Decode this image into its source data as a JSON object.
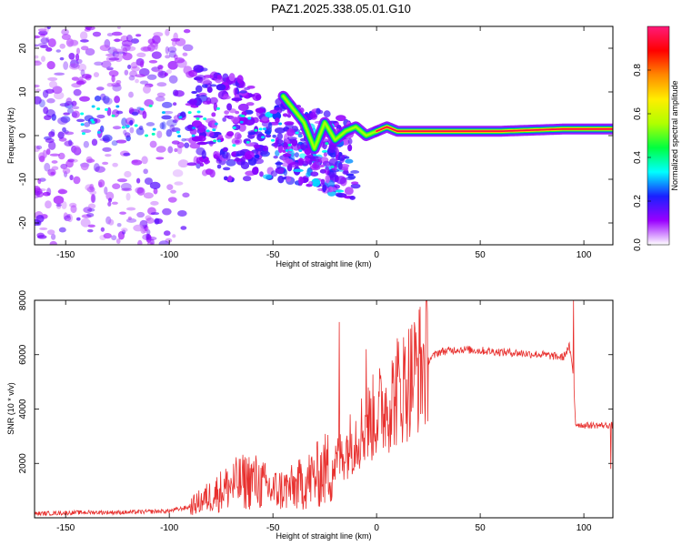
{
  "title": "PAZ1.2025.338.05.01.G10",
  "colors": {
    "snr_line": "#e8302e",
    "frame": "#000000",
    "colormap": [
      "#ffffff",
      "#9a00ff",
      "#1a20ff",
      "#00ffff",
      "#00ff40",
      "#b0ff00",
      "#ffee00",
      "#ff8800",
      "#ff0000",
      "#ff1a7a"
    ]
  },
  "chart_data": [
    {
      "type": "heatmap",
      "name": "spectrogram",
      "xlabel": "Height of straight line (km)",
      "ylabel": "Frequency (Hz)",
      "xlim": [
        -165,
        114
      ],
      "ylim": [
        -25,
        25
      ],
      "xticks": [
        -150,
        -100,
        -50,
        0,
        50,
        100
      ],
      "yticks": [
        -20,
        -10,
        0,
        10,
        20
      ],
      "ridge": [
        {
          "x": -45,
          "y": 9
        },
        {
          "x": -40,
          "y": 6
        },
        {
          "x": -35,
          "y": 3
        },
        {
          "x": -30,
          "y": -3
        },
        {
          "x": -25,
          "y": 3
        },
        {
          "x": -20,
          "y": -1
        },
        {
          "x": -15,
          "y": 1
        },
        {
          "x": -10,
          "y": 2
        },
        {
          "x": -5,
          "y": 0
        },
        {
          "x": 0,
          "y": 1
        },
        {
          "x": 5,
          "y": 2
        },
        {
          "x": 10,
          "y": 1
        },
        {
          "x": 30,
          "y": 1
        },
        {
          "x": 60,
          "y": 1
        },
        {
          "x": 90,
          "y": 1.5
        },
        {
          "x": 114,
          "y": 1.5
        }
      ],
      "colorbar": {
        "label": "Normalized spectral amplitude",
        "range": [
          0,
          1
        ],
        "ticks": [
          0.0,
          0.2,
          0.4,
          0.6,
          0.8
        ],
        "tick_labels": [
          "0.0",
          "0.2",
          "0.4",
          "0.6",
          "0.8"
        ]
      }
    },
    {
      "type": "line",
      "name": "snr",
      "xlabel": "Height of straight line (km)",
      "ylabel": "SNR (10 * v/v)",
      "xlim": [
        -165,
        114
      ],
      "ylim": [
        0,
        8000
      ],
      "xticks": [
        -150,
        -100,
        -50,
        0,
        50,
        100
      ],
      "yticks": [
        2000,
        4000,
        6000,
        8000
      ],
      "series": [
        {
          "name": "SNR",
          "envelope_x": [
            -165,
            -140,
            -120,
            -100,
            -90,
            -80,
            -70,
            -60,
            -50,
            -40,
            -30,
            -20,
            -10,
            0,
            10,
            20,
            30,
            40,
            60,
            80,
            90,
            93,
            95,
            96,
            100,
            114
          ],
          "envelope_y": [
            150,
            200,
            200,
            250,
            400,
            800,
            1200,
            1400,
            1000,
            1100,
            1500,
            2000,
            3000,
            3800,
            4600,
            5500,
            6100,
            6200,
            6100,
            6000,
            5900,
            6300,
            5200,
            3450,
            3400,
            3400
          ],
          "spikes": [
            {
              "x": -18,
              "y": 7200
            },
            {
              "x": -5,
              "y": 6200
            },
            {
              "x": 10,
              "y": 6600
            },
            {
              "x": 95,
              "y": 8000
            },
            {
              "x": 113,
              "y": 1800
            }
          ]
        }
      ]
    }
  ]
}
